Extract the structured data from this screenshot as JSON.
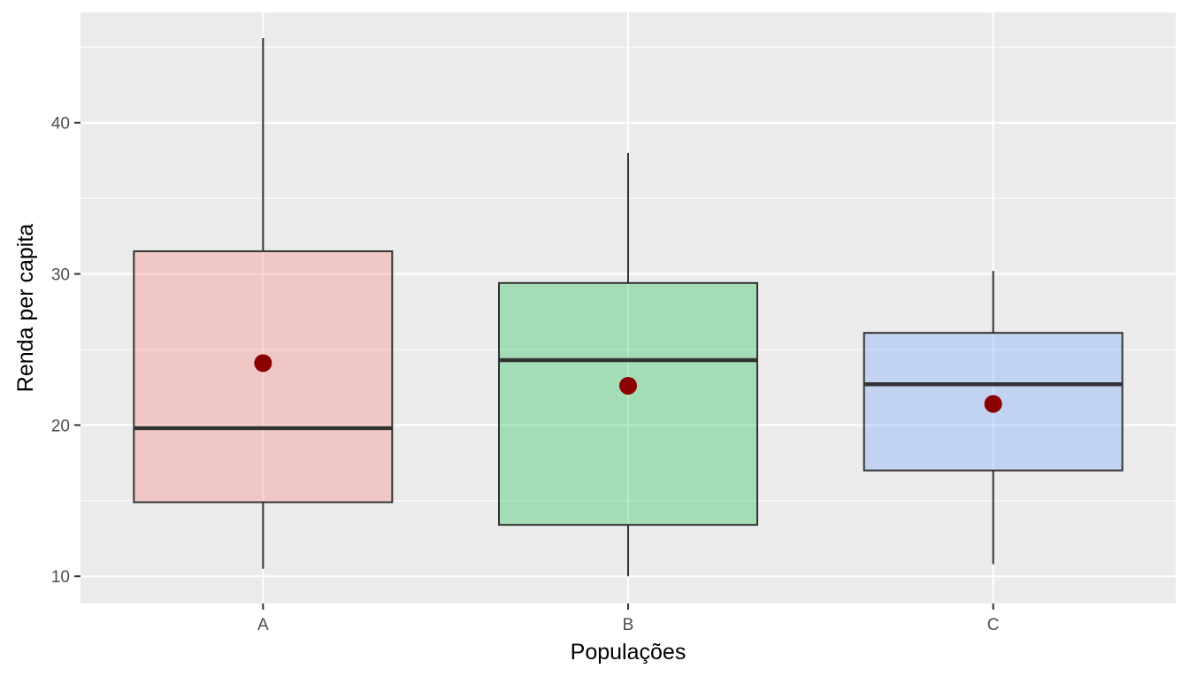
{
  "chart_data": {
    "type": "boxplot",
    "title": "",
    "xlabel": "Populações",
    "ylabel": "Renda per capita",
    "categories": [
      "A",
      "B",
      "C"
    ],
    "ylim": [
      8.2,
      47.3
    ],
    "yticks": [
      10,
      20,
      30,
      40
    ],
    "grid": true,
    "boxes": [
      {
        "category": "A",
        "whisker_low": 10.5,
        "q1": 14.9,
        "median": 19.8,
        "q3": 31.5,
        "whisker_high": 45.6,
        "mean": 24.1,
        "fill": "#F8766D"
      },
      {
        "category": "B",
        "whisker_low": 10.0,
        "q1": 13.4,
        "median": 24.3,
        "q3": 29.4,
        "whisker_high": 38.0,
        "mean": 22.6,
        "fill": "#00BA38"
      },
      {
        "category": "C",
        "whisker_low": 10.8,
        "q1": 17.0,
        "median": 22.7,
        "q3": 26.1,
        "whisker_high": 30.2,
        "mean": 21.4,
        "fill": "#619CFF"
      }
    ],
    "mean_point_color": "#8B0000",
    "panel_background": "#EBEBEB",
    "box_outline": "#333333"
  }
}
